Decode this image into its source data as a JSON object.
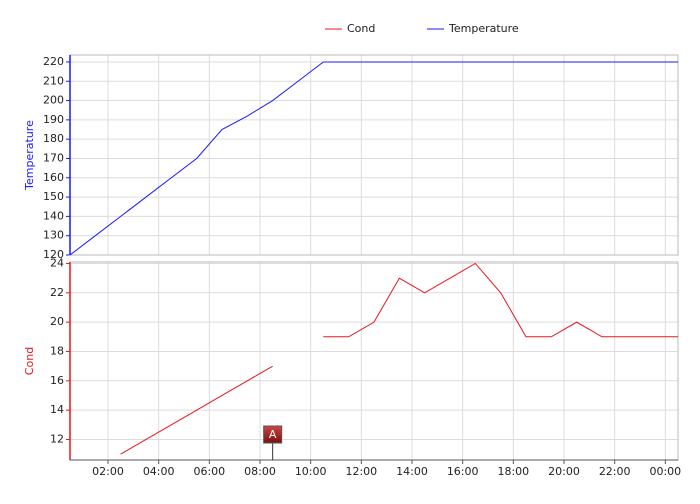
{
  "chart_data": {
    "type": "line",
    "x": [
      0.5,
      1.5,
      2.5,
      3.5,
      4.5,
      5.5,
      6.5,
      7.5,
      8.5,
      9.5,
      10.5,
      11.5,
      12.5,
      13.5,
      14.5,
      15.5,
      16.5,
      17.5,
      18.5,
      19.5,
      20.5,
      21.5,
      22.5,
      23.5,
      24.5
    ],
    "xlim": [
      0.5,
      24.5
    ],
    "xticks": [
      {
        "value": 2,
        "label": "02:00"
      },
      {
        "value": 4,
        "label": "04:00"
      },
      {
        "value": 6,
        "label": "06:00"
      },
      {
        "value": 8,
        "label": "08:00"
      },
      {
        "value": 10,
        "label": "10:00"
      },
      {
        "value": 12,
        "label": "12:00"
      },
      {
        "value": 14,
        "label": "14:00"
      },
      {
        "value": 16,
        "label": "16:00"
      },
      {
        "value": 18,
        "label": "18:00"
      },
      {
        "value": 20,
        "label": "20:00"
      },
      {
        "value": 22,
        "label": "22:00"
      },
      {
        "value": 24,
        "label": "00:00"
      }
    ],
    "ylabel": "Temperature",
    "ylim": [
      120,
      223.6
    ],
    "yticks": [
      120,
      130,
      140,
      150,
      160,
      170,
      180,
      190,
      200,
      210,
      220
    ],
    "y2label": "Cond",
    "y2lim": [
      10.6,
      24.1
    ],
    "y2ticks": [
      12,
      14,
      16,
      18,
      20,
      22,
      24
    ],
    "grid": true,
    "legend": "top",
    "series": [
      {
        "name": "Cond",
        "color": "#e8161c",
        "axis": "y2",
        "values": [
          null,
          null,
          11,
          12,
          13,
          14,
          15,
          16,
          17,
          null,
          19,
          19,
          20,
          23,
          22,
          23,
          24,
          22,
          19,
          19,
          20,
          19,
          19,
          19,
          19
        ]
      },
      {
        "name": "Temperature",
        "color": "#1a1aff",
        "values": [
          120,
          130,
          140,
          150,
          160,
          170,
          185,
          192,
          200,
          210,
          220,
          220,
          220,
          220,
          220,
          220,
          220,
          220,
          220,
          220,
          220,
          220,
          220,
          220,
          220
        ]
      }
    ],
    "annotations": [
      {
        "text": "A",
        "x": 8.5
      }
    ]
  }
}
